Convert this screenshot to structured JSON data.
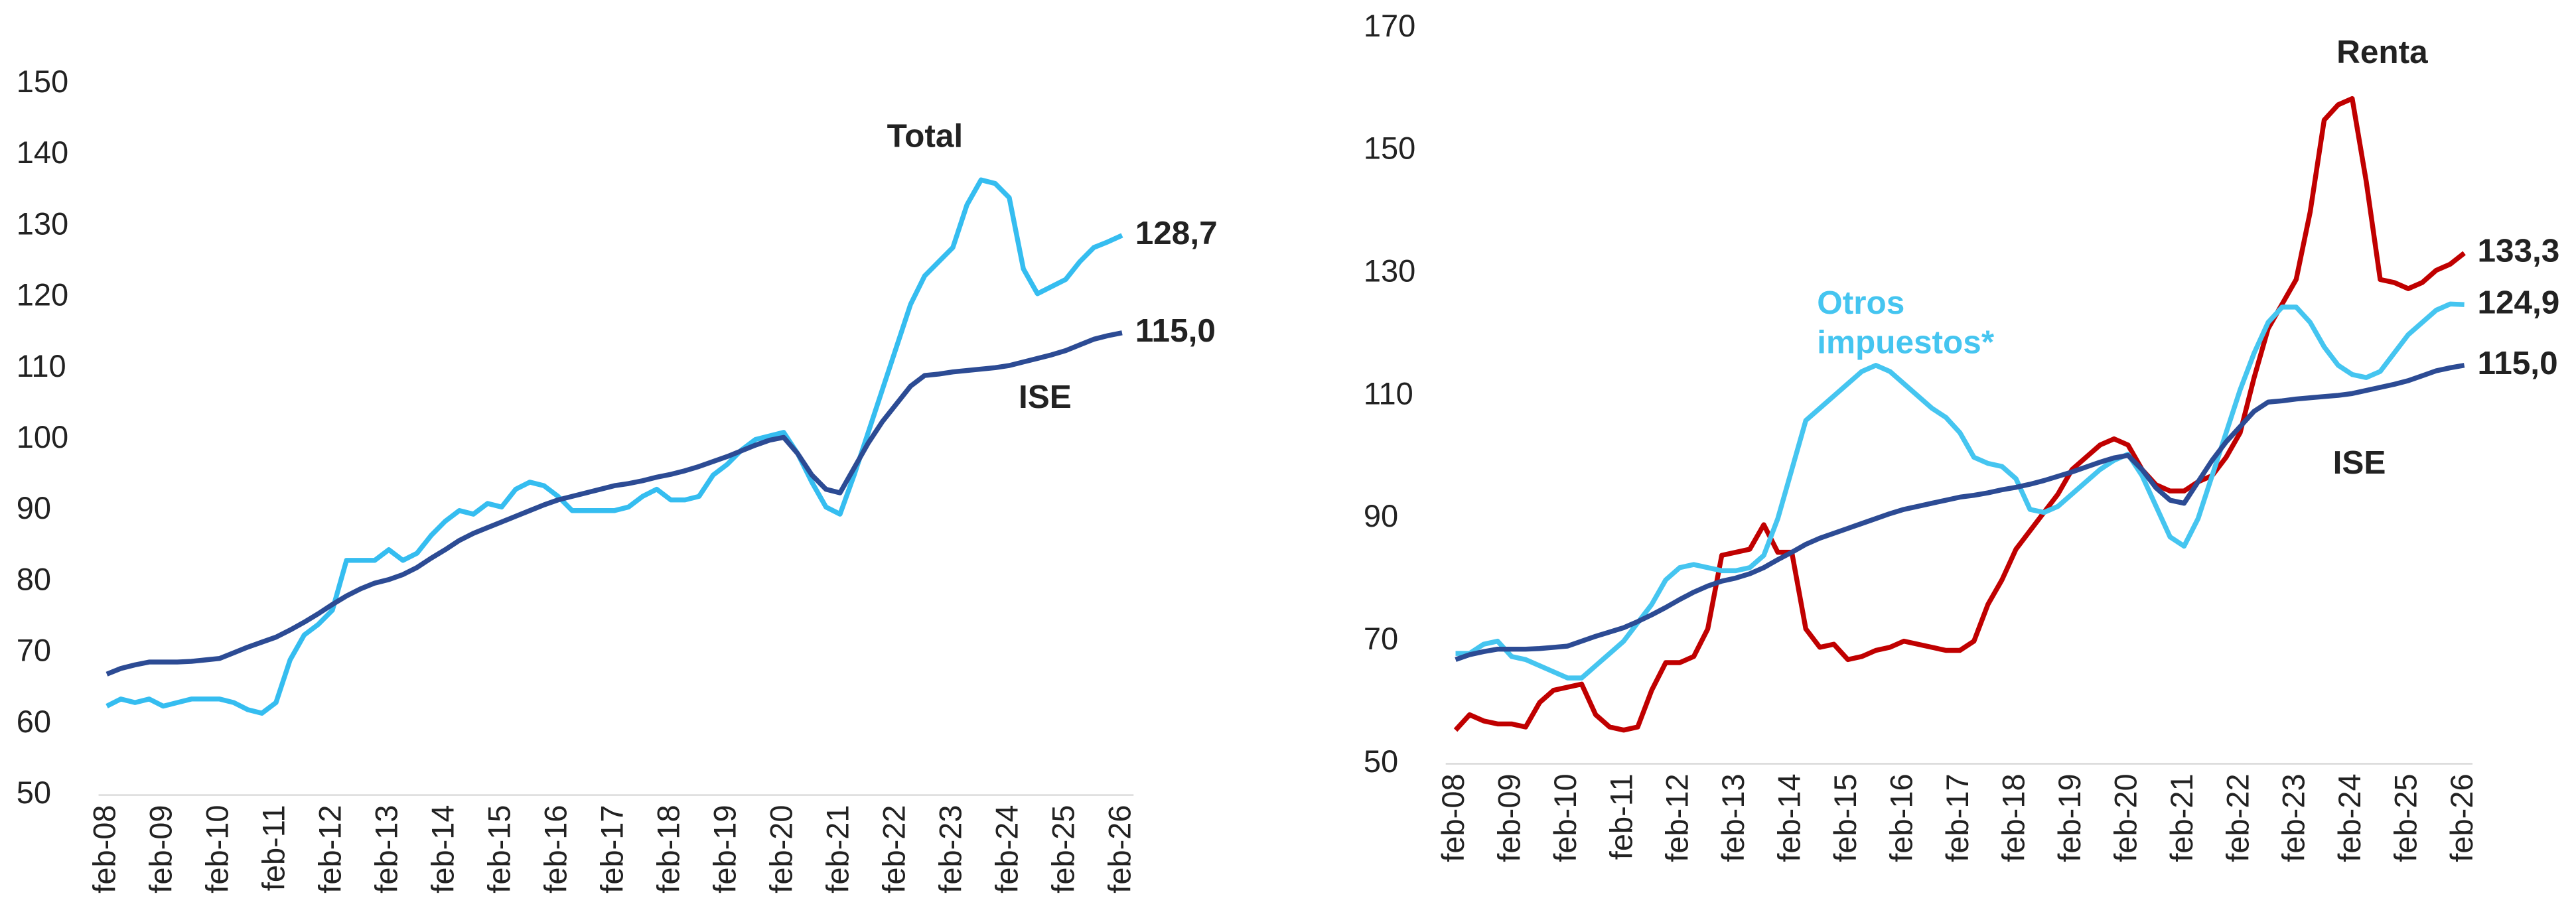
{
  "chart_data": [
    {
      "type": "line",
      "categories": [
        "feb-08",
        null,
        null,
        null,
        "feb-09",
        null,
        null,
        null,
        "feb-10",
        null,
        null,
        null,
        "feb-11",
        null,
        null,
        null,
        "feb-12",
        null,
        null,
        null,
        "feb-13",
        null,
        null,
        null,
        "feb-14",
        null,
        null,
        null,
        "feb-15",
        null,
        null,
        null,
        "feb-16",
        null,
        null,
        null,
        "feb-17",
        null,
        null,
        null,
        "feb-18",
        null,
        null,
        null,
        "feb-19",
        null,
        null,
        null,
        "feb-20",
        null,
        null,
        null,
        "feb-21",
        null,
        null,
        null,
        "feb-22",
        null,
        null,
        null,
        "feb-23",
        null,
        null,
        null,
        "feb-24",
        null,
        null,
        null,
        "feb-25",
        null,
        null,
        null,
        "feb-26"
      ],
      "ylim": [
        50,
        150
      ],
      "yticks": [
        50,
        60,
        70,
        80,
        90,
        100,
        110,
        120,
        130,
        140,
        150
      ],
      "series": [
        {
          "name": "Total",
          "color": "#35bdf0",
          "values": [
            62.5,
            63.5,
            63,
            63.5,
            62.5,
            63,
            63.5,
            63.5,
            63.5,
            63,
            62,
            61.5,
            63,
            69,
            72.5,
            74,
            76,
            83,
            83,
            83,
            84.5,
            83,
            84,
            86.5,
            88.5,
            90,
            89.5,
            91,
            90.5,
            93,
            94,
            93.5,
            92,
            90,
            90,
            90,
            90,
            90.5,
            92,
            93,
            91.5,
            91.5,
            92,
            95,
            96.5,
            98.5,
            100,
            100.5,
            101,
            98,
            94,
            90.5,
            89.5,
            95,
            101,
            107,
            113,
            119,
            123,
            125,
            127,
            133,
            136.5,
            136,
            134,
            124,
            120.5,
            121.5,
            122.5,
            125,
            127,
            127.8,
            128.7
          ],
          "value_labels": {
            "72": "128,7"
          }
        },
        {
          "name": "ISE",
          "color": "#2c4b94",
          "values": [
            67,
            67.8,
            68.3,
            68.7,
            68.7,
            68.7,
            68.8,
            69,
            69.2,
            70,
            70.8,
            71.5,
            72.2,
            73.2,
            74.3,
            75.5,
            76.8,
            78,
            79,
            79.8,
            80.3,
            81,
            82,
            83.3,
            84.5,
            85.8,
            86.8,
            87.6,
            88.4,
            89.2,
            90,
            90.8,
            91.5,
            92,
            92.5,
            93,
            93.5,
            93.8,
            94.2,
            94.7,
            95.1,
            95.6,
            96.2,
            96.9,
            97.6,
            98.4,
            99.2,
            99.9,
            100.3,
            98,
            95,
            93,
            92.5,
            96,
            99.5,
            102.5,
            105,
            107.5,
            109,
            109.2,
            109.5,
            109.7,
            109.9,
            110.1,
            110.4,
            110.9,
            111.4,
            111.9,
            112.5,
            113.3,
            114.1,
            114.6,
            115.0
          ],
          "value_labels": {
            "72": "115,0"
          }
        }
      ]
    },
    {
      "type": "line",
      "categories": [
        "feb-08",
        null,
        null,
        null,
        "feb-09",
        null,
        null,
        null,
        "feb-10",
        null,
        null,
        null,
        "feb-11",
        null,
        null,
        null,
        "feb-12",
        null,
        null,
        null,
        "feb-13",
        null,
        null,
        null,
        "feb-14",
        null,
        null,
        null,
        "feb-15",
        null,
        null,
        null,
        "feb-16",
        null,
        null,
        null,
        "feb-17",
        null,
        null,
        null,
        "feb-18",
        null,
        null,
        null,
        "feb-19",
        null,
        null,
        null,
        "feb-20",
        null,
        null,
        null,
        "feb-21",
        null,
        null,
        null,
        "feb-22",
        null,
        null,
        null,
        "feb-23",
        null,
        null,
        null,
        "feb-24",
        null,
        null,
        null,
        "feb-25",
        null,
        null,
        null,
        "feb-26"
      ],
      "ylim": [
        50,
        170
      ],
      "yticks": [
        50,
        70,
        90,
        110,
        130,
        150,
        170
      ],
      "series": [
        {
          "name": "Renta",
          "color": "#c00000",
          "values": [
            55.5,
            58,
            57,
            56.5,
            56.5,
            56,
            60,
            62,
            62.5,
            63,
            58,
            56,
            55.5,
            56,
            62,
            66.5,
            66.5,
            67.5,
            72,
            84,
            84.5,
            85,
            89,
            84.5,
            84.5,
            72,
            69,
            69.5,
            67,
            67.5,
            68.5,
            69,
            70,
            69.5,
            69,
            68.5,
            68.5,
            70,
            76,
            80,
            85,
            88,
            91,
            94,
            98,
            100,
            102,
            103,
            102,
            98,
            95.5,
            94.5,
            94.5,
            96,
            97,
            100,
            104,
            113,
            121,
            125,
            129,
            140,
            155,
            157.5,
            158.5,
            145,
            129,
            128.5,
            127.5,
            128.5,
            130.5,
            131.5,
            133.3
          ],
          "value_labels": {
            "72": "133,3"
          }
        },
        {
          "name": "Otros impuestos*",
          "color": "#45c5f0",
          "values": [
            68,
            68,
            69.5,
            70,
            67.5,
            67,
            66,
            65,
            64,
            64,
            66,
            68,
            70,
            73,
            76,
            80,
            82,
            82.5,
            82,
            81.5,
            81.5,
            82,
            84,
            90,
            98,
            106,
            108,
            110,
            112,
            114,
            115,
            114,
            112,
            110,
            108,
            106.5,
            104,
            100,
            99,
            98.5,
            96.5,
            91.5,
            91,
            92,
            94,
            96,
            98,
            99.5,
            100.5,
            97,
            92,
            87,
            85.5,
            90,
            97,
            104,
            111,
            117,
            122,
            124.5,
            124.5,
            122,
            118,
            115,
            113.5,
            113,
            114,
            117,
            120,
            122,
            124,
            125,
            124.9
          ],
          "value_labels": {
            "72": "124,9"
          }
        },
        {
          "name": "ISE",
          "color": "#2c4b94",
          "values": [
            67,
            67.8,
            68.3,
            68.7,
            68.7,
            68.7,
            68.8,
            69,
            69.2,
            70,
            70.8,
            71.5,
            72.2,
            73.2,
            74.3,
            75.5,
            76.8,
            78,
            79,
            79.8,
            80.3,
            81,
            82,
            83.3,
            84.5,
            85.8,
            86.8,
            87.6,
            88.4,
            89.2,
            90,
            90.8,
            91.5,
            92,
            92.5,
            93,
            93.5,
            93.8,
            94.2,
            94.7,
            95.1,
            95.6,
            96.2,
            96.9,
            97.6,
            98.4,
            99.2,
            99.9,
            100.3,
            98,
            95,
            93,
            92.5,
            96,
            99.5,
            102.5,
            105,
            107.5,
            109,
            109.2,
            109.5,
            109.7,
            109.9,
            110.1,
            110.4,
            110.9,
            111.4,
            111.9,
            112.5,
            113.3,
            114.1,
            114.6,
            115.0
          ],
          "value_labels": {
            "72": "115,0"
          }
        }
      ]
    }
  ]
}
